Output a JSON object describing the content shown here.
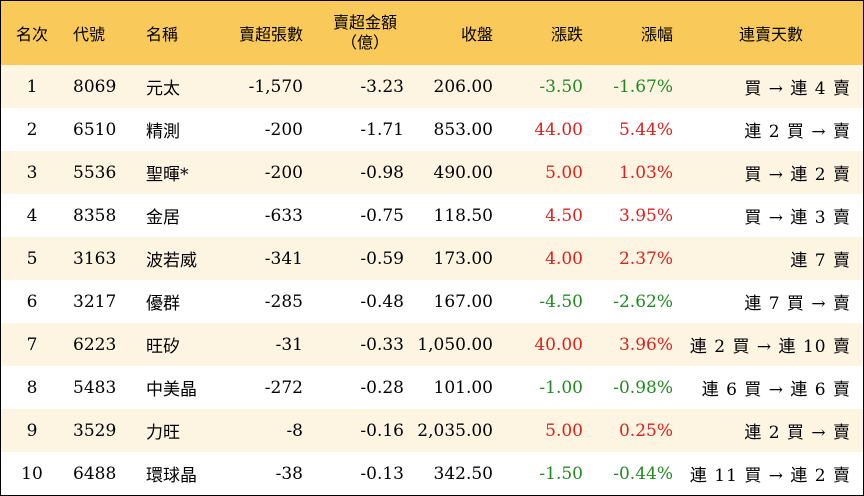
{
  "colors": {
    "header_bg": "#f9c95a",
    "stripe_bg": "#fdf4e2",
    "up": "#e0201a",
    "down": "#208a20"
  },
  "headers": {
    "rank": "名次",
    "code": "代號",
    "name": "名稱",
    "net_sell_volume": "賣超張數",
    "net_sell_amount_line1": "賣超金額",
    "net_sell_amount_line2": "（億）",
    "close": "收盤",
    "change": "漲跌",
    "change_pct": "漲幅",
    "streak": "連賣天數"
  },
  "rows": [
    {
      "rank": "1",
      "code": "8069",
      "name": "元太",
      "volume": "-1,570",
      "amount": "-3.23",
      "close": "206.00",
      "change": "-3.50",
      "pct": "-1.67%",
      "dir": "down",
      "streak": "買 → 連 4 賣"
    },
    {
      "rank": "2",
      "code": "6510",
      "name": "精測",
      "volume": "-200",
      "amount": "-1.71",
      "close": "853.00",
      "change": "44.00",
      "pct": "5.44%",
      "dir": "up",
      "streak": "連 2 買 → 賣"
    },
    {
      "rank": "3",
      "code": "5536",
      "name": "聖暉*",
      "volume": "-200",
      "amount": "-0.98",
      "close": "490.00",
      "change": "5.00",
      "pct": "1.03%",
      "dir": "up",
      "streak": "買 → 連 2 賣"
    },
    {
      "rank": "4",
      "code": "8358",
      "name": "金居",
      "volume": "-633",
      "amount": "-0.75",
      "close": "118.50",
      "change": "4.50",
      "pct": "3.95%",
      "dir": "up",
      "streak": "買 → 連 3 賣"
    },
    {
      "rank": "5",
      "code": "3163",
      "name": "波若威",
      "volume": "-341",
      "amount": "-0.59",
      "close": "173.00",
      "change": "4.00",
      "pct": "2.37%",
      "dir": "up",
      "streak": "連 7 賣"
    },
    {
      "rank": "6",
      "code": "3217",
      "name": "優群",
      "volume": "-285",
      "amount": "-0.48",
      "close": "167.00",
      "change": "-4.50",
      "pct": "-2.62%",
      "dir": "down",
      "streak": "連 7 買 → 賣"
    },
    {
      "rank": "7",
      "code": "6223",
      "name": "旺矽",
      "volume": "-31",
      "amount": "-0.33",
      "close": "1,050.00",
      "change": "40.00",
      "pct": "3.96%",
      "dir": "up",
      "streak": "連 2 買 → 連 10 賣"
    },
    {
      "rank": "8",
      "code": "5483",
      "name": "中美晶",
      "volume": "-272",
      "amount": "-0.28",
      "close": "101.00",
      "change": "-1.00",
      "pct": "-0.98%",
      "dir": "down",
      "streak": "連 6 買 → 連 6 賣"
    },
    {
      "rank": "9",
      "code": "3529",
      "name": "力旺",
      "volume": "-8",
      "amount": "-0.16",
      "close": "2,035.00",
      "change": "5.00",
      "pct": "0.25%",
      "dir": "up",
      "streak": "連 2 買 → 賣"
    },
    {
      "rank": "10",
      "code": "6488",
      "name": "環球晶",
      "volume": "-38",
      "amount": "-0.13",
      "close": "342.50",
      "change": "-1.50",
      "pct": "-0.44%",
      "dir": "down",
      "streak": "連 11 買 → 連 2 賣"
    }
  ]
}
